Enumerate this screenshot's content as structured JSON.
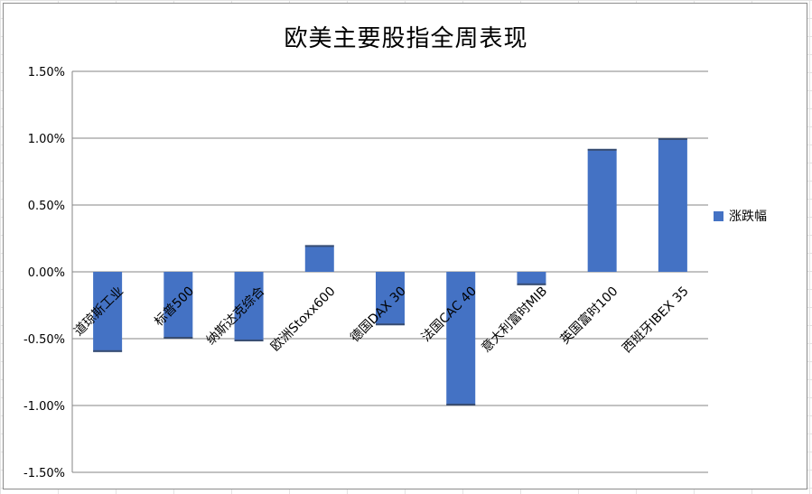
{
  "chart_data": {
    "type": "bar",
    "title": "欧美主要股指全周表现",
    "categories": [
      "道琼斯工业",
      "标普500",
      "纳斯达克综合",
      "欧洲Stoxx600",
      "德国DAX 30",
      "法国CAC 40",
      "意大利富时MIB",
      "英国富时100",
      "西班牙IBEX 35"
    ],
    "series": [
      {
        "name": "涨跌幅",
        "values": [
          -0.006,
          -0.005,
          -0.0052,
          0.002,
          -0.004,
          -0.01,
          -0.001,
          0.0092,
          0.01
        ]
      }
    ],
    "ylim": [
      -0.015,
      0.015
    ],
    "yticks": [
      0.015,
      0.01,
      0.005,
      0.0,
      -0.005,
      -0.01,
      -0.015
    ],
    "ytick_labels": [
      "1.50%",
      "1.00%",
      "0.50%",
      "0.00%",
      "-0.50%",
      "-1.00%",
      "-1.50%"
    ],
    "y_format": "percent",
    "grid": true,
    "legend_position": "right",
    "colors": {
      "bar": "#4472c4",
      "grid": "#868686",
      "axis": "#868686"
    }
  }
}
